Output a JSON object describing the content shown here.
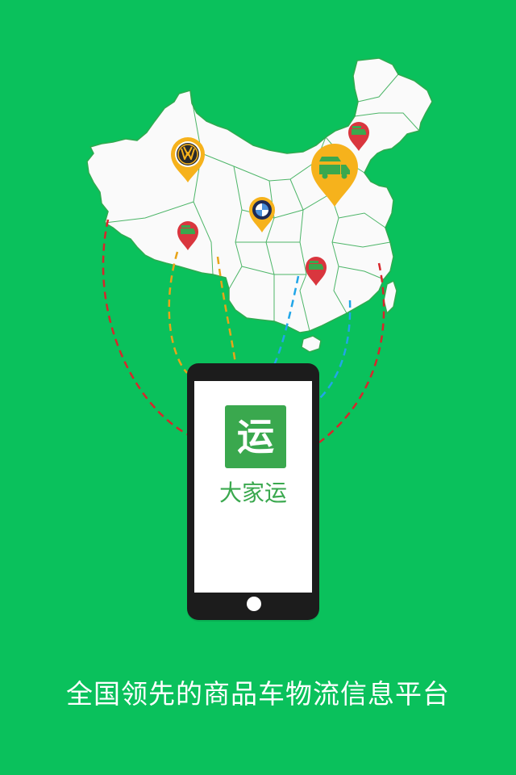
{
  "app": {
    "icon_glyph": "运",
    "name": "大家运"
  },
  "tagline": "全国领先的商品车物流信息平台",
  "colors": {
    "background": "#0ac15c",
    "map_fill": "#fafafa",
    "map_border": "#2faa4f",
    "phone_body": "#1c1c1c",
    "app_green": "#3aa84e",
    "pin_yellow": "#f6b21c",
    "pin_red": "#d9363e",
    "line_red": "#d7262b",
    "line_orange": "#e8a419",
    "line_blue": "#21a6e8"
  },
  "markers": [
    {
      "name": "volkswagen-logo-pin",
      "color": "yellow",
      "icon": "vw-logo-icon"
    },
    {
      "name": "bmw-logo-pin",
      "color": "yellow",
      "icon": "bmw-logo-icon"
    },
    {
      "name": "truck-pin-large",
      "color": "yellow",
      "icon": "car-carrier-truck-icon"
    },
    {
      "name": "truck-pin-northeast",
      "color": "red",
      "icon": "car-carrier-truck-icon"
    },
    {
      "name": "truck-pin-west",
      "color": "red",
      "icon": "car-carrier-truck-icon"
    },
    {
      "name": "truck-pin-south",
      "color": "red",
      "icon": "car-carrier-truck-icon"
    }
  ]
}
